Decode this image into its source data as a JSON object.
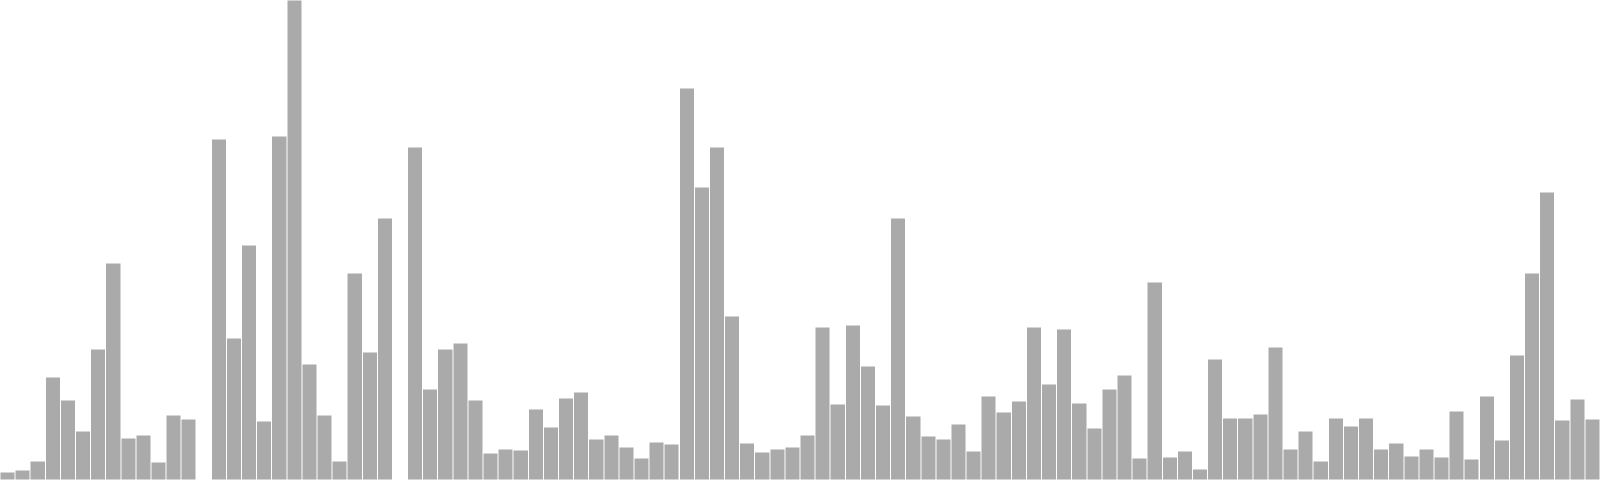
{
  "chart_data": {
    "type": "bar",
    "title": "",
    "xlabel": "",
    "ylabel": "",
    "grid": false,
    "legend": "none",
    "ylim": [
      0,
      480
    ],
    "bar_color": "#aaaaaa",
    "bar_edge_color": "#ffffff",
    "values": [
      8,
      10,
      19,
      103,
      80,
      49,
      131,
      217,
      42,
      45,
      18,
      65,
      61,
      0,
      341,
      142,
      235,
      59,
      344,
      480,
      116,
      65,
      19,
      207,
      128,
      262,
      0,
      333,
      91,
      131,
      137,
      80,
      27,
      31,
      30,
      71,
      53,
      82,
      88,
      41,
      45,
      33,
      22,
      38,
      36,
      392,
      293,
      333,
      164,
      37,
      28,
      31,
      33,
      45,
      153,
      76,
      155,
      114,
      75,
      262,
      64,
      44,
      41,
      56,
      29,
      84,
      68,
      79,
      153,
      96,
      151,
      77,
      52,
      91,
      105,
      22,
      198,
      23,
      29,
      11,
      121,
      62,
      62,
      66,
      133,
      31,
      49,
      19,
      62,
      54,
      62,
      31,
      37,
      24,
      31,
      23,
      69,
      21,
      84,
      40,
      125,
      207,
      288,
      60,
      81,
      61
    ]
  }
}
